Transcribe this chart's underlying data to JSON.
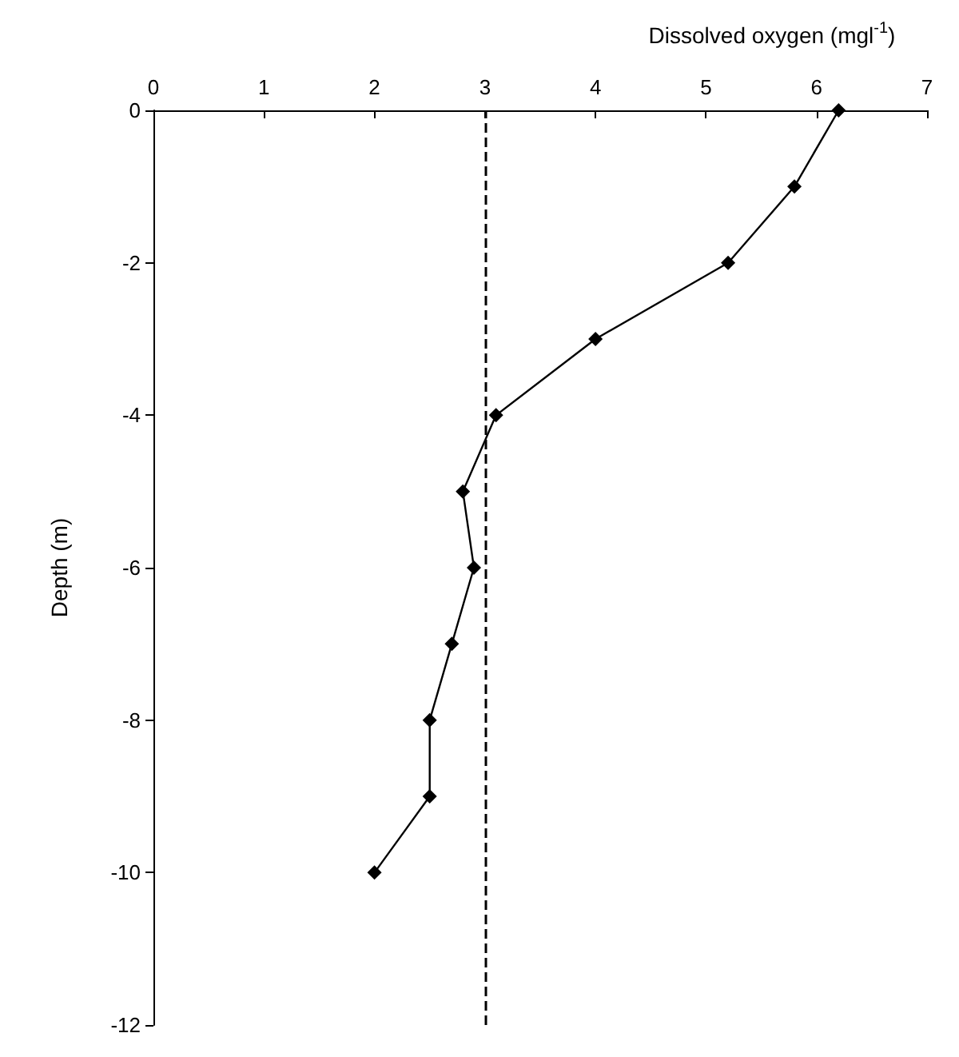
{
  "chart_data": {
    "type": "line",
    "xlabel": "Dissolved oxygen (mgl$^{-1}$)",
    "ylabel": "Depth (m)",
    "series": [
      {
        "color": "#000000",
        "x": [
          6.2,
          5.8,
          5.2,
          4,
          3.1,
          2.8,
          2.9,
          2.7,
          2.5,
          2.5,
          2
        ],
        "values": [
          0,
          -1,
          -2,
          -3,
          -4,
          -5,
          -6,
          -7,
          -8,
          -9,
          -10
        ]
      }
    ],
    "xlim": [
      0,
      7
    ],
    "xticks": [
      0,
      1,
      2,
      3,
      4,
      5,
      6,
      7
    ],
    "ylim": [
      -12,
      0
    ],
    "yticks": [
      0,
      -2,
      -4,
      -6,
      -8,
      -10,
      -12
    ],
    "ref_lines": [
      {
        "axis": "x",
        "value": 3,
        "color": "#000000",
        "line_style": "dashed"
      }
    ],
    "marker": "diamond",
    "line_style": "solid"
  }
}
